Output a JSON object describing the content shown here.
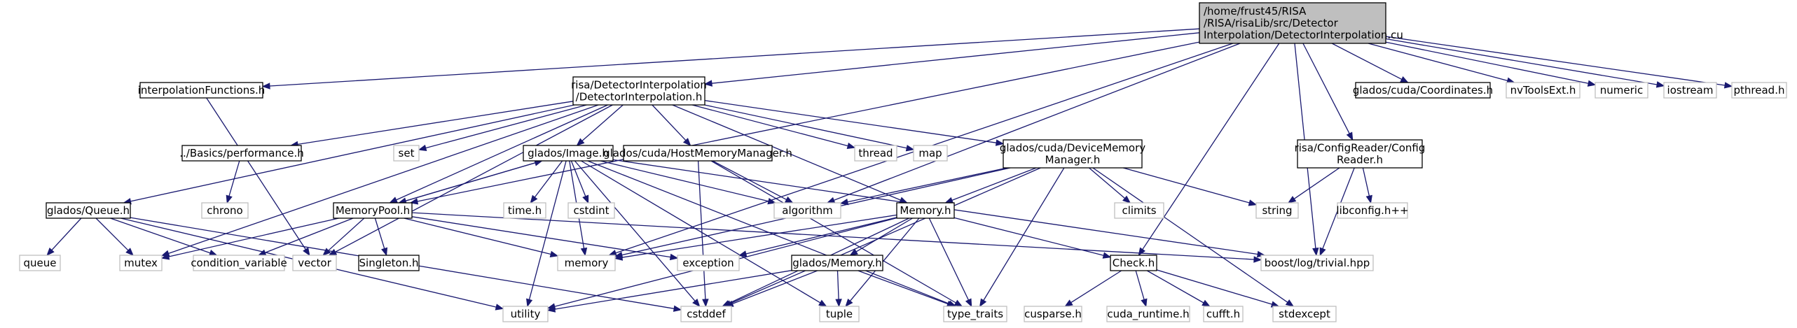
{
  "nodes": [
    {
      "id": "root",
      "kind": "root",
      "lines": [
        "/home/frust45/RISA",
        "/RISA/risaLib/src/Detector",
        "Interpolation/DetectorInterpolation.cu"
      ]
    },
    {
      "id": "interp_functions",
      "kind": "local",
      "lines": [
        "interpolationFunctions.h"
      ]
    },
    {
      "id": "detector_interp",
      "kind": "local",
      "lines": [
        "risa/DetectorInterpolation",
        "/DetectorInterpolation.h"
      ]
    },
    {
      "id": "coordinates",
      "kind": "local",
      "lines": [
        "glados/cuda/Coordinates.h"
      ]
    },
    {
      "id": "nvtoolsext",
      "kind": "system",
      "lines": [
        "nvToolsExt.h"
      ]
    },
    {
      "id": "numeric",
      "kind": "system",
      "lines": [
        "numeric"
      ]
    },
    {
      "id": "iostream",
      "kind": "system",
      "lines": [
        "iostream"
      ]
    },
    {
      "id": "pthread",
      "kind": "system",
      "lines": [
        "pthread.h"
      ]
    },
    {
      "id": "performance",
      "kind": "local",
      "lines": [
        "../Basics/performance.h"
      ]
    },
    {
      "id": "set",
      "kind": "system",
      "lines": [
        "set"
      ]
    },
    {
      "id": "image",
      "kind": "local",
      "lines": [
        "glados/Image.h"
      ]
    },
    {
      "id": "host_memory_manager",
      "kind": "local",
      "lines": [
        "glados/cuda/HostMemoryManager.h"
      ]
    },
    {
      "id": "thread",
      "kind": "system",
      "lines": [
        "thread"
      ]
    },
    {
      "id": "map",
      "kind": "system",
      "lines": [
        "map"
      ]
    },
    {
      "id": "device_memory_manager",
      "kind": "local",
      "lines": [
        "glados/cuda/DeviceMemory",
        "Manager.h"
      ]
    },
    {
      "id": "config_reader",
      "kind": "local",
      "lines": [
        "risa/ConfigReader/Config",
        "Reader.h"
      ]
    },
    {
      "id": "queue_h",
      "kind": "local",
      "lines": [
        "glados/Queue.h"
      ]
    },
    {
      "id": "chrono",
      "kind": "system",
      "lines": [
        "chrono"
      ]
    },
    {
      "id": "memory_pool",
      "kind": "local",
      "lines": [
        "MemoryPool.h"
      ]
    },
    {
      "id": "time",
      "kind": "system",
      "lines": [
        "time.h"
      ]
    },
    {
      "id": "cstdint",
      "kind": "system",
      "lines": [
        "cstdint"
      ]
    },
    {
      "id": "algorithm",
      "kind": "system",
      "lines": [
        "algorithm"
      ]
    },
    {
      "id": "memory_h",
      "kind": "local",
      "lines": [
        "Memory.h"
      ]
    },
    {
      "id": "climits",
      "kind": "system",
      "lines": [
        "climits"
      ]
    },
    {
      "id": "string",
      "kind": "system",
      "lines": [
        "string"
      ]
    },
    {
      "id": "libconfig",
      "kind": "system",
      "lines": [
        "libconfig.h++"
      ]
    },
    {
      "id": "queue_sys",
      "kind": "system",
      "lines": [
        "queue"
      ]
    },
    {
      "id": "mutex",
      "kind": "system",
      "lines": [
        "mutex"
      ]
    },
    {
      "id": "condition_variable",
      "kind": "system",
      "lines": [
        "condition_variable"
      ]
    },
    {
      "id": "vector",
      "kind": "system",
      "lines": [
        "vector"
      ]
    },
    {
      "id": "singleton",
      "kind": "local",
      "lines": [
        "Singleton.h"
      ]
    },
    {
      "id": "memory_sys",
      "kind": "system",
      "lines": [
        "memory"
      ]
    },
    {
      "id": "exception",
      "kind": "system",
      "lines": [
        "exception"
      ]
    },
    {
      "id": "glados_memory",
      "kind": "local",
      "lines": [
        "glados/Memory.h"
      ]
    },
    {
      "id": "boost_trivial",
      "kind": "system",
      "lines": [
        "boost/log/trivial.hpp"
      ]
    },
    {
      "id": "check",
      "kind": "local",
      "lines": [
        "Check.h"
      ]
    },
    {
      "id": "utility",
      "kind": "system",
      "lines": [
        "utility"
      ]
    },
    {
      "id": "cstddef",
      "kind": "system",
      "lines": [
        "cstddef"
      ]
    },
    {
      "id": "tuple",
      "kind": "system",
      "lines": [
        "tuple"
      ]
    },
    {
      "id": "type_traits",
      "kind": "system",
      "lines": [
        "type_traits"
      ]
    },
    {
      "id": "cusparse",
      "kind": "system",
      "lines": [
        "cusparse.h"
      ]
    },
    {
      "id": "cuda_runtime",
      "kind": "system",
      "lines": [
        "cuda_runtime.h"
      ]
    },
    {
      "id": "cufft",
      "kind": "system",
      "lines": [
        "cufft.h"
      ]
    },
    {
      "id": "stdexcept",
      "kind": "system",
      "lines": [
        "stdexcept"
      ]
    }
  ],
  "edges": [
    [
      "root",
      "interp_functions"
    ],
    [
      "root",
      "detector_interp"
    ],
    [
      "root",
      "memory_pool"
    ],
    [
      "root",
      "algorithm"
    ],
    [
      "root",
      "memory_sys"
    ],
    [
      "root",
      "check"
    ],
    [
      "root",
      "boost_trivial"
    ],
    [
      "root",
      "config_reader"
    ],
    [
      "root",
      "coordinates"
    ],
    [
      "root",
      "nvtoolsext"
    ],
    [
      "root",
      "numeric"
    ],
    [
      "root",
      "iostream"
    ],
    [
      "root",
      "pthread"
    ],
    [
      "interp_functions",
      "vector"
    ],
    [
      "detector_interp",
      "queue_h"
    ],
    [
      "detector_interp",
      "performance"
    ],
    [
      "detector_interp",
      "set"
    ],
    [
      "detector_interp",
      "image"
    ],
    [
      "detector_interp",
      "host_memory_manager"
    ],
    [
      "detector_interp",
      "thread"
    ],
    [
      "detector_interp",
      "map"
    ],
    [
      "detector_interp",
      "device_memory_manager"
    ],
    [
      "detector_interp",
      "memory_pool"
    ],
    [
      "detector_interp",
      "memory_h"
    ],
    [
      "detector_interp",
      "mutex"
    ],
    [
      "detector_interp",
      "vector"
    ],
    [
      "performance",
      "chrono"
    ],
    [
      "image",
      "memory_pool"
    ],
    [
      "image",
      "time"
    ],
    [
      "image",
      "cstdint"
    ],
    [
      "image",
      "algorithm"
    ],
    [
      "image",
      "memory_sys"
    ],
    [
      "image",
      "utility"
    ],
    [
      "image",
      "cstddef"
    ],
    [
      "image",
      "tuple"
    ],
    [
      "image",
      "type_traits"
    ],
    [
      "image",
      "boost_trivial"
    ],
    [
      "memory_pool",
      "image"
    ],
    [
      "memory_pool",
      "mutex"
    ],
    [
      "memory_pool",
      "condition_variable"
    ],
    [
      "memory_pool",
      "vector"
    ],
    [
      "memory_pool",
      "singleton"
    ],
    [
      "memory_pool",
      "memory_sys"
    ],
    [
      "memory_pool",
      "exception"
    ],
    [
      "memory_pool",
      "boost_trivial"
    ],
    [
      "host_memory_manager",
      "algorithm"
    ],
    [
      "host_memory_manager",
      "cstddef"
    ],
    [
      "host_memory_manager",
      "type_traits"
    ],
    [
      "device_memory_manager",
      "memory_h"
    ],
    [
      "device_memory_manager",
      "algorithm"
    ],
    [
      "device_memory_manager",
      "climits"
    ],
    [
      "device_memory_manager",
      "string"
    ],
    [
      "device_memory_manager",
      "memory_sys"
    ],
    [
      "device_memory_manager",
      "cstddef"
    ],
    [
      "device_memory_manager",
      "type_traits"
    ],
    [
      "device_memory_manager",
      "stdexcept"
    ],
    [
      "config_reader",
      "string"
    ],
    [
      "config_reader",
      "libconfig"
    ],
    [
      "config_reader",
      "boost_trivial"
    ],
    [
      "queue_h",
      "queue_sys"
    ],
    [
      "queue_h",
      "mutex"
    ],
    [
      "queue_h",
      "condition_variable"
    ],
    [
      "queue_h",
      "utility"
    ],
    [
      "queue_h",
      "cstddef"
    ],
    [
      "memory_h",
      "memory_sys"
    ],
    [
      "memory_h",
      "exception"
    ],
    [
      "memory_h",
      "glados_memory"
    ],
    [
      "memory_h",
      "check"
    ],
    [
      "memory_h",
      "utility"
    ],
    [
      "memory_h",
      "cstddef"
    ],
    [
      "memory_h",
      "tuple"
    ],
    [
      "memory_h",
      "type_traits"
    ],
    [
      "glados_memory",
      "utility"
    ],
    [
      "glados_memory",
      "cstddef"
    ],
    [
      "glados_memory",
      "tuple"
    ],
    [
      "glados_memory",
      "type_traits"
    ],
    [
      "check",
      "cusparse"
    ],
    [
      "check",
      "cuda_runtime"
    ],
    [
      "check",
      "cufft"
    ],
    [
      "check",
      "stdexcept"
    ]
  ]
}
